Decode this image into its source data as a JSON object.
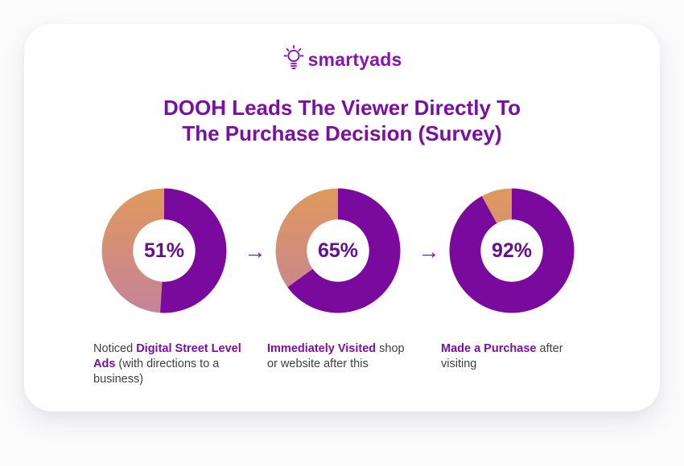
{
  "logo": {
    "text": "smartyads",
    "icon": "lightbulb-icon",
    "color": "#8A12B4"
  },
  "title": {
    "line1": "DOOH Leads The Viewer Directly To",
    "line2": "The Purchase Decision (Survey)"
  },
  "arrow": {
    "glyph": "→"
  },
  "chart_data": {
    "type": "pie",
    "style": "donut",
    "title": "DOOH Leads The Viewer Directly To The Purchase Decision (Survey)",
    "units": "%",
    "series": [
      {
        "label": "Noticed Digital Street Level Ads (with directions to a business)",
        "value": 51
      },
      {
        "label": "Immediately Visited shop or website after this",
        "value": 65
      },
      {
        "label": "Made a Purchase after visiting",
        "value": 92
      }
    ],
    "segment_start": "12 o'clock, clockwise",
    "colors": {
      "value_segment": "#7A0A9E",
      "remainder_gradient_top": "#E0995C",
      "remainder_gradient_bottom": "#C48399",
      "hole": "#ffffff"
    }
  },
  "charts": [
    {
      "value": 51,
      "value_label": "51%",
      "caption": {
        "prefix": "Noticed ",
        "bold": "Digital Street Level Ads",
        "suffix": " (with directions to a business)"
      }
    },
    {
      "value": 65,
      "value_label": "65%",
      "caption": {
        "prefix": "",
        "bold": "Immediately Visited",
        "suffix": " shop or website after this"
      }
    },
    {
      "value": 92,
      "value_label": "92%",
      "caption": {
        "prefix": "",
        "bold": "Made a Purchase",
        "suffix": " after visiting"
      }
    }
  ]
}
